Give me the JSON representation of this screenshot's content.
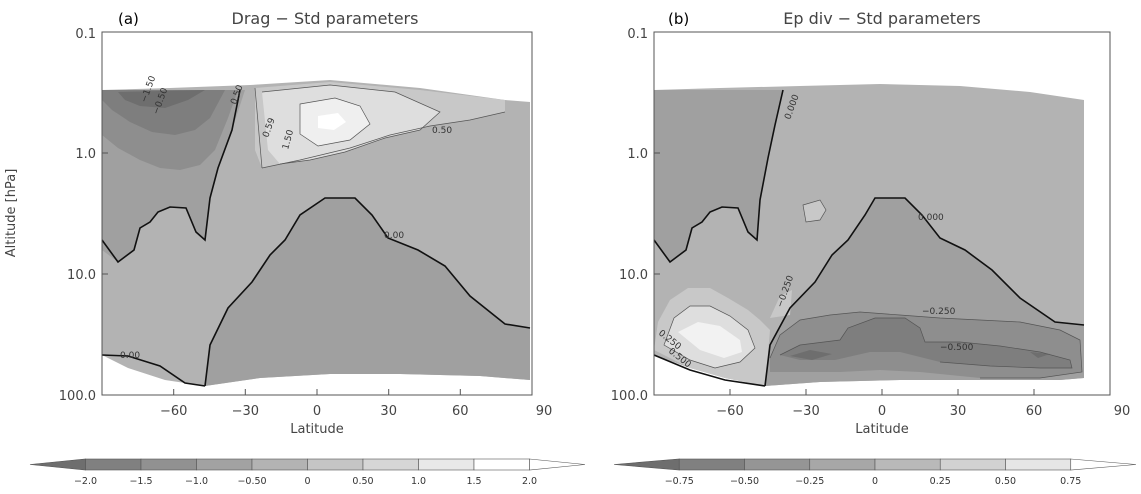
{
  "chart_data": [
    {
      "type": "contour",
      "panel_label": "(a)",
      "title": "Drag − Std parameters",
      "xlabel": "Latitude",
      "ylabel": "Altitude [hPa]",
      "xlim": [
        -90,
        90
      ],
      "ylim": [
        100.0,
        0.1
      ],
      "y_scale": "log",
      "x_ticks": [
        "−60",
        "−30",
        "0",
        "30",
        "60",
        "90"
      ],
      "y_ticks": [
        "0.1",
        "1.0",
        "10.0",
        "100.0"
      ],
      "contour_labels": [
        "−1.50",
        "−0.50",
        "0.59",
        "0.50",
        "1.50",
        "0.50",
        "0.00",
        "0.00",
        "0.00"
      ],
      "colorbar": {
        "levels": [
          "−2.0",
          "−1.5",
          "−1.0",
          "−0.50",
          "0",
          "0.50",
          "1.0",
          "1.5",
          "2.0"
        ],
        "colors": [
          "#6e6e6e",
          "#808080",
          "#919191",
          "#a2a2a2",
          "#b3b3b3",
          "#c5c5c5",
          "#d6d6d6",
          "#e8e8e8",
          "#ffffff",
          "#ffffff"
        ]
      }
    },
    {
      "type": "contour",
      "panel_label": "(b)",
      "title": "Ep div − Std parameters",
      "xlabel": "Latitude",
      "ylabel": "",
      "xlim": [
        -90,
        90
      ],
      "ylim": [
        100.0,
        0.1
      ],
      "y_scale": "log",
      "x_ticks": [
        "−60",
        "−30",
        "0",
        "30",
        "60",
        "90"
      ],
      "y_ticks": [
        "0.1",
        "1.0",
        "10.0",
        "100.0"
      ],
      "contour_labels": [
        "0.000",
        "0.000",
        "−0.250",
        "−0.250",
        "−0.500",
        "0.250",
        "0.500"
      ],
      "colorbar": {
        "levels": [
          "−0.75",
          "−0.50",
          "−0.25",
          "0",
          "0.25",
          "0.50",
          "0.75"
        ],
        "colors": [
          "#6e6e6e",
          "#808080",
          "#959595",
          "#a7a7a7",
          "#b9b9b9",
          "#d2d2d2",
          "#e6e6e6",
          "#ffffff"
        ]
      }
    }
  ]
}
